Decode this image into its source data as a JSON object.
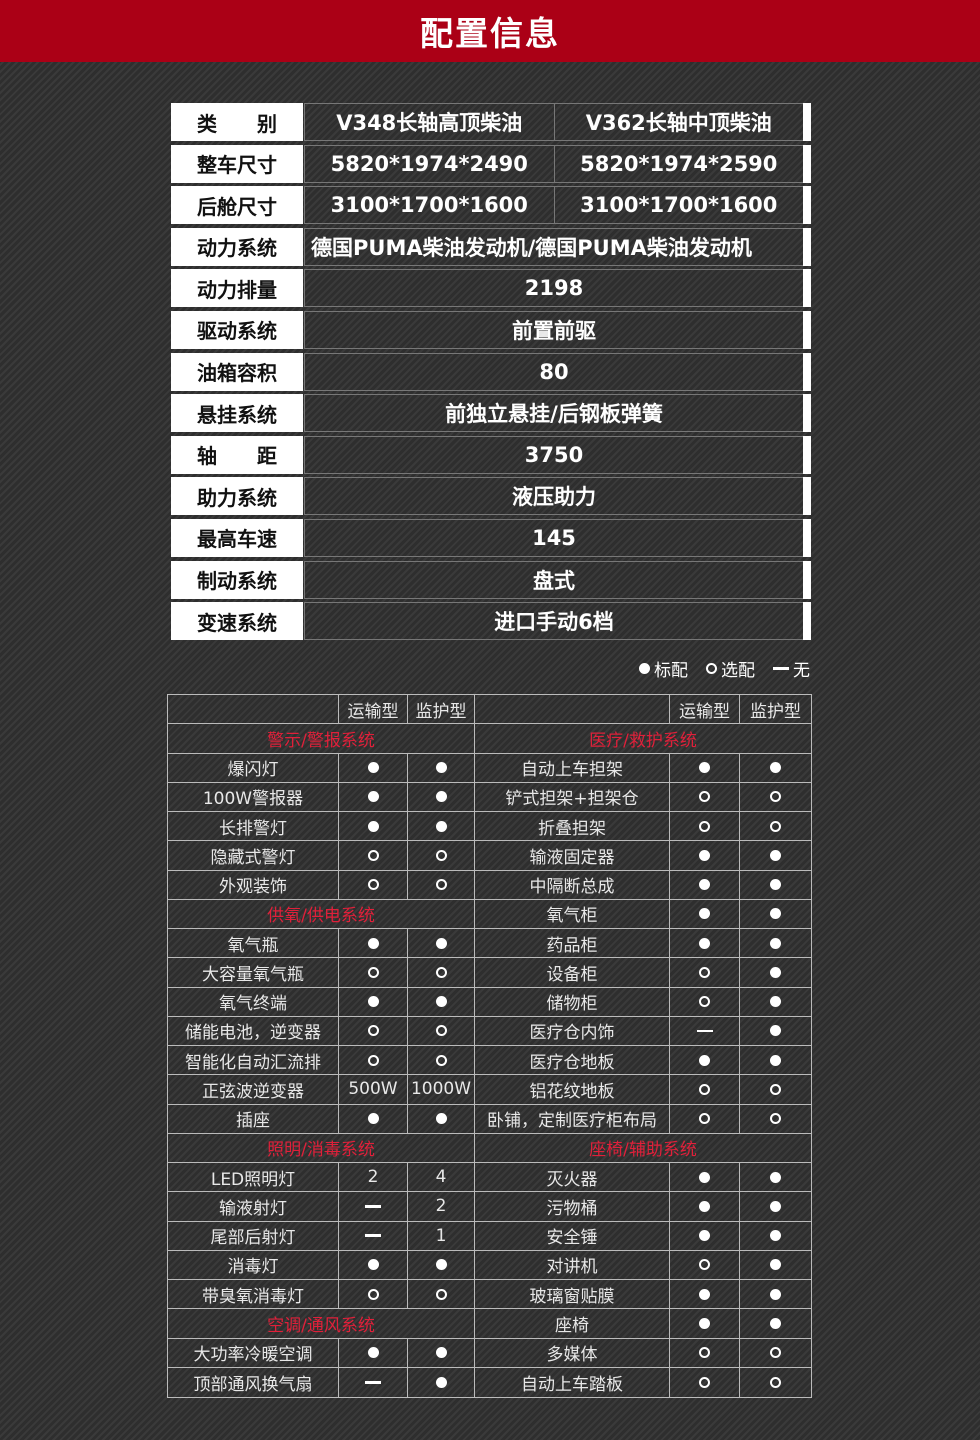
{
  "title": "配置信息",
  "colors": {
    "header": "#ab0016",
    "section": "#e0203a",
    "background": "#333333"
  },
  "spec": [
    {
      "label": "类　　别",
      "values": [
        "V348长轴高顶柴油",
        "V362长轴中顶柴油"
      ]
    },
    {
      "label": "整车尺寸",
      "values": [
        "5820*1974*2490",
        "5820*1974*2590"
      ]
    },
    {
      "label": "后舱尺寸",
      "values": [
        "3100*1700*1600",
        "3100*1700*1600"
      ]
    },
    {
      "label": "动力系统",
      "values": [
        "德国PUMA柴油发动机/德国PUMA柴油发动机"
      ],
      "align": "left"
    },
    {
      "label": "动力排量",
      "values": [
        "2198"
      ]
    },
    {
      "label": "驱动系统",
      "values": [
        "前置前驱"
      ]
    },
    {
      "label": "油箱容积",
      "values": [
        "80"
      ]
    },
    {
      "label": "悬挂系统",
      "values": [
        "前独立悬挂/后钢板弹簧"
      ]
    },
    {
      "label": "轴　　距",
      "values": [
        "3750"
      ]
    },
    {
      "label": "助力系统",
      "values": [
        "液压助力"
      ]
    },
    {
      "label": "最高车速",
      "values": [
        "145"
      ]
    },
    {
      "label": "制动系统",
      "values": [
        "盘式"
      ]
    },
    {
      "label": "变速系统",
      "values": [
        "进口手动6档"
      ]
    }
  ],
  "legend": {
    "standard": "标配",
    "optional": "选配",
    "none": "无"
  },
  "options": {
    "columns": [
      "运输型",
      "监护型"
    ],
    "left": [
      {
        "section": "警示/警报系统"
      },
      {
        "name": "爆闪灯",
        "v": [
          "full",
          "full"
        ]
      },
      {
        "name": "100W警报器",
        "v": [
          "full",
          "full"
        ]
      },
      {
        "name": "长排警灯",
        "v": [
          "full",
          "full"
        ]
      },
      {
        "name": "隐藏式警灯",
        "v": [
          "open",
          "open"
        ]
      },
      {
        "name": "外观装饰",
        "v": [
          "open",
          "open"
        ]
      },
      {
        "section": "供氧/供电系统"
      },
      {
        "name": "氧气瓶",
        "v": [
          "full",
          "full"
        ]
      },
      {
        "name": "大容量氧气瓶",
        "v": [
          "open",
          "open"
        ]
      },
      {
        "name": "氧气终端",
        "v": [
          "full",
          "full"
        ]
      },
      {
        "name": "储能电池，逆变器",
        "v": [
          "open",
          "open"
        ]
      },
      {
        "name": "智能化自动汇流排",
        "v": [
          "open",
          "open"
        ]
      },
      {
        "name": "正弦波逆变器",
        "v": [
          "500W",
          "1000W"
        ]
      },
      {
        "name": "插座",
        "v": [
          "full",
          "full"
        ]
      },
      {
        "section": "照明/消毒系统"
      },
      {
        "name": "LED照明灯",
        "v": [
          "2",
          "4"
        ]
      },
      {
        "name": "输液射灯",
        "v": [
          "none",
          "2"
        ]
      },
      {
        "name": "尾部后射灯",
        "v": [
          "none",
          "1"
        ]
      },
      {
        "name": "消毒灯",
        "v": [
          "full",
          "full"
        ]
      },
      {
        "name": "带臭氧消毒灯",
        "v": [
          "open",
          "open"
        ]
      },
      {
        "section": "空调/通风系统"
      },
      {
        "name": "大功率冷暖空调",
        "v": [
          "full",
          "full"
        ]
      },
      {
        "name": "顶部通风换气扇",
        "v": [
          "none",
          "full"
        ]
      }
    ],
    "right": [
      {
        "section": "医疗/救护系统"
      },
      {
        "name": "自动上车担架",
        "v": [
          "full",
          "full"
        ]
      },
      {
        "name": "铲式担架+担架仓",
        "v": [
          "open",
          "open"
        ]
      },
      {
        "name": "折叠担架",
        "v": [
          "open",
          "open"
        ]
      },
      {
        "name": "输液固定器",
        "v": [
          "full",
          "full"
        ]
      },
      {
        "name": "中隔断总成",
        "v": [
          "full",
          "full"
        ]
      },
      {
        "name": "氧气柜",
        "v": [
          "full",
          "full"
        ]
      },
      {
        "name": "药品柜",
        "v": [
          "full",
          "full"
        ]
      },
      {
        "name": "设备柜",
        "v": [
          "open",
          "full"
        ]
      },
      {
        "name": "储物柜",
        "v": [
          "open",
          "full"
        ]
      },
      {
        "name": "医疗仓内饰",
        "v": [
          "none",
          "full"
        ]
      },
      {
        "name": "医疗仓地板",
        "v": [
          "full",
          "full"
        ]
      },
      {
        "name": "铝花纹地板",
        "v": [
          "open",
          "open"
        ]
      },
      {
        "name": "卧铺，定制医疗柜布局",
        "v": [
          "open",
          "open"
        ]
      },
      {
        "section": "座椅/辅助系统"
      },
      {
        "name": "灭火器",
        "v": [
          "full",
          "full"
        ]
      },
      {
        "name": "污物桶",
        "v": [
          "full",
          "full"
        ]
      },
      {
        "name": "安全锤",
        "v": [
          "full",
          "full"
        ]
      },
      {
        "name": "对讲机",
        "v": [
          "open",
          "full"
        ]
      },
      {
        "name": "玻璃窗贴膜",
        "v": [
          "full",
          "full"
        ]
      },
      {
        "name": "座椅",
        "v": [
          "full",
          "full"
        ]
      },
      {
        "name": "多媒体",
        "v": [
          "open",
          "open"
        ]
      },
      {
        "name": "自动上车踏板",
        "v": [
          "open",
          "open"
        ]
      }
    ]
  }
}
